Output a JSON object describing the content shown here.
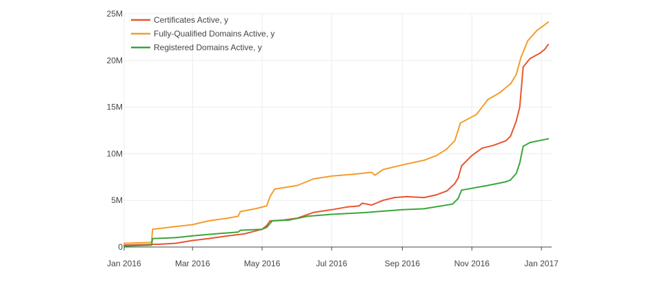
{
  "chart_data": {
    "type": "line",
    "title": "",
    "xlabel": "",
    "ylabel": "",
    "xlim": [
      "2016-01-01",
      "2017-01-10"
    ],
    "ylim": [
      0,
      25000000
    ],
    "grid": true,
    "legend_position": "top-left",
    "x_ticks": [
      {
        "date": "2016-01-01",
        "label": "Jan 2016"
      },
      {
        "date": "2016-03-01",
        "label": "Mar 2016"
      },
      {
        "date": "2016-05-01",
        "label": "May 2016"
      },
      {
        "date": "2016-07-01",
        "label": "Jul 2016"
      },
      {
        "date": "2016-09-01",
        "label": "Sep 2016"
      },
      {
        "date": "2016-11-01",
        "label": "Nov 2016"
      },
      {
        "date": "2017-01-01",
        "label": "Jan 2017"
      }
    ],
    "y_ticks": [
      {
        "value": 0,
        "label": "0"
      },
      {
        "value": 5000000,
        "label": "5M"
      },
      {
        "value": 10000000,
        "label": "10M"
      },
      {
        "value": 15000000,
        "label": "15M"
      },
      {
        "value": 20000000,
        "label": "20M"
      },
      {
        "value": 25000000,
        "label": "25M"
      }
    ],
    "series": [
      {
        "name": "Certificates Active, y",
        "color": "#e8542e",
        "points": [
          [
            "2016-01-01",
            200000
          ],
          [
            "2016-01-15",
            250000
          ],
          [
            "2016-02-01",
            300000
          ],
          [
            "2016-02-15",
            400000
          ],
          [
            "2016-03-01",
            700000
          ],
          [
            "2016-03-15",
            900000
          ],
          [
            "2016-04-01",
            1200000
          ],
          [
            "2016-04-15",
            1400000
          ],
          [
            "2016-05-01",
            1900000
          ],
          [
            "2016-05-05",
            2300000
          ],
          [
            "2016-05-08",
            2800000
          ],
          [
            "2016-05-20",
            2900000
          ],
          [
            "2016-06-01",
            3100000
          ],
          [
            "2016-06-15",
            3700000
          ],
          [
            "2016-07-01",
            4000000
          ],
          [
            "2016-07-15",
            4300000
          ],
          [
            "2016-07-25",
            4400000
          ],
          [
            "2016-07-28",
            4700000
          ],
          [
            "2016-08-05",
            4500000
          ],
          [
            "2016-08-15",
            5000000
          ],
          [
            "2016-08-25",
            5300000
          ],
          [
            "2016-09-05",
            5400000
          ],
          [
            "2016-09-20",
            5300000
          ],
          [
            "2016-10-01",
            5600000
          ],
          [
            "2016-10-10",
            6000000
          ],
          [
            "2016-10-17",
            6800000
          ],
          [
            "2016-10-20",
            7400000
          ],
          [
            "2016-10-23",
            8700000
          ],
          [
            "2016-11-01",
            9800000
          ],
          [
            "2016-11-10",
            10600000
          ],
          [
            "2016-11-20",
            10900000
          ],
          [
            "2016-12-01",
            11400000
          ],
          [
            "2016-12-05",
            11900000
          ],
          [
            "2016-12-10",
            13500000
          ],
          [
            "2016-12-13",
            15000000
          ],
          [
            "2016-12-16",
            19300000
          ],
          [
            "2016-12-22",
            20200000
          ],
          [
            "2016-12-31",
            20800000
          ],
          [
            "2017-01-04",
            21200000
          ],
          [
            "2017-01-07",
            21700000
          ]
        ]
      },
      {
        "name": "Fully-Qualified Domains Active, y",
        "color": "#f49c2b",
        "points": [
          [
            "2016-01-01",
            400000
          ],
          [
            "2016-01-25",
            500000
          ],
          [
            "2016-01-26",
            1900000
          ],
          [
            "2016-02-15",
            2200000
          ],
          [
            "2016-03-01",
            2400000
          ],
          [
            "2016-03-15",
            2800000
          ],
          [
            "2016-04-01",
            3100000
          ],
          [
            "2016-04-10",
            3300000
          ],
          [
            "2016-04-12",
            3800000
          ],
          [
            "2016-04-25",
            4100000
          ],
          [
            "2016-05-05",
            4400000
          ],
          [
            "2016-05-08",
            5400000
          ],
          [
            "2016-05-12",
            6200000
          ],
          [
            "2016-06-01",
            6600000
          ],
          [
            "2016-06-15",
            7300000
          ],
          [
            "2016-07-01",
            7600000
          ],
          [
            "2016-07-20",
            7800000
          ],
          [
            "2016-08-05",
            8000000
          ],
          [
            "2016-08-08",
            7700000
          ],
          [
            "2016-08-15",
            8300000
          ],
          [
            "2016-09-01",
            8800000
          ],
          [
            "2016-09-20",
            9300000
          ],
          [
            "2016-10-01",
            9800000
          ],
          [
            "2016-10-10",
            10500000
          ],
          [
            "2016-10-17",
            11400000
          ],
          [
            "2016-10-22",
            13300000
          ],
          [
            "2016-11-05",
            14200000
          ],
          [
            "2016-11-15",
            15800000
          ],
          [
            "2016-11-25",
            16500000
          ],
          [
            "2016-12-05",
            17500000
          ],
          [
            "2016-12-10",
            18500000
          ],
          [
            "2016-12-14",
            20300000
          ],
          [
            "2016-12-20",
            22100000
          ],
          [
            "2016-12-28",
            23200000
          ],
          [
            "2017-01-07",
            24100000
          ]
        ]
      },
      {
        "name": "Registered Domains Active, y",
        "color": "#3aa53a",
        "points": [
          [
            "2016-01-01",
            100000
          ],
          [
            "2016-01-25",
            200000
          ],
          [
            "2016-01-26",
            900000
          ],
          [
            "2016-02-15",
            1000000
          ],
          [
            "2016-03-01",
            1200000
          ],
          [
            "2016-03-20",
            1400000
          ],
          [
            "2016-04-10",
            1600000
          ],
          [
            "2016-04-12",
            1800000
          ],
          [
            "2016-05-01",
            1900000
          ],
          [
            "2016-05-05",
            2100000
          ],
          [
            "2016-05-10",
            2800000
          ],
          [
            "2016-05-25",
            2900000
          ],
          [
            "2016-06-10",
            3300000
          ],
          [
            "2016-07-01",
            3500000
          ],
          [
            "2016-08-01",
            3700000
          ],
          [
            "2016-08-10",
            3800000
          ],
          [
            "2016-09-01",
            4000000
          ],
          [
            "2016-09-20",
            4100000
          ],
          [
            "2016-10-05",
            4400000
          ],
          [
            "2016-10-15",
            4600000
          ],
          [
            "2016-10-20",
            5200000
          ],
          [
            "2016-10-23",
            6100000
          ],
          [
            "2016-11-15",
            6600000
          ],
          [
            "2016-12-01",
            7000000
          ],
          [
            "2016-12-05",
            7200000
          ],
          [
            "2016-12-10",
            7900000
          ],
          [
            "2016-12-13",
            9000000
          ],
          [
            "2016-12-16",
            10800000
          ],
          [
            "2016-12-22",
            11200000
          ],
          [
            "2017-01-07",
            11600000
          ]
        ]
      }
    ]
  }
}
